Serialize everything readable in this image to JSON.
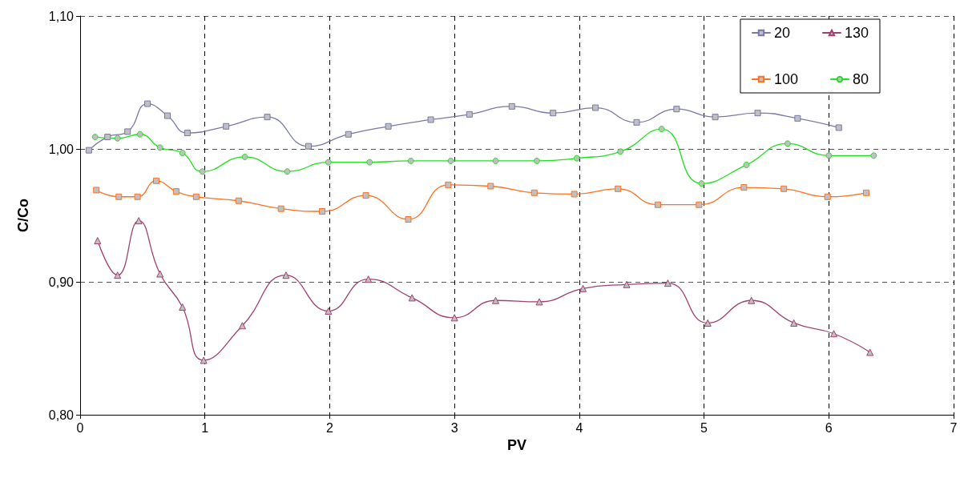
{
  "chart_data": {
    "type": "line",
    "xlabel": "PV",
    "ylabel": "C/Co",
    "xlim": [
      0,
      7
    ],
    "xticks": [
      0,
      1,
      2,
      3,
      4,
      5,
      6,
      7
    ],
    "ylim": [
      0.8,
      1.1
    ],
    "yticks": [
      {
        "value": 0.8,
        "label": "0,80"
      },
      {
        "value": 0.9,
        "label": "0,90"
      },
      {
        "value": 1.0,
        "label": "1,00"
      },
      {
        "value": 1.1,
        "label": "1,10"
      }
    ],
    "grid": true,
    "legend": "top right",
    "line_style": "solid",
    "series": [
      {
        "name": "20",
        "color": "#7878a8",
        "marker": "square",
        "x": [
          0.07,
          0.22,
          0.38,
          0.54,
          0.7,
          0.86,
          1.17,
          1.5,
          1.83,
          2.15,
          2.47,
          2.81,
          3.12,
          3.46,
          3.79,
          4.13,
          4.46,
          4.78,
          5.09,
          5.43,
          5.75,
          6.08
        ],
        "values": [
          0.999,
          1.009,
          1.013,
          1.034,
          1.025,
          1.012,
          1.017,
          1.024,
          1.002,
          1.011,
          1.017,
          1.022,
          1.026,
          1.032,
          1.027,
          1.031,
          1.02,
          1.03,
          1.024,
          1.027,
          1.023,
          1.016
        ]
      },
      {
        "name": "130",
        "color": "#a04070",
        "marker": "triangle",
        "x": [
          0.14,
          0.3,
          0.47,
          0.64,
          0.82,
          0.99,
          1.3,
          1.65,
          1.99,
          2.31,
          2.66,
          3.0,
          3.33,
          3.68,
          4.03,
          4.38,
          4.71,
          5.03,
          5.38,
          5.72,
          6.04,
          6.33
        ],
        "values": [
          0.931,
          0.905,
          0.946,
          0.906,
          0.881,
          0.841,
          0.867,
          0.905,
          0.878,
          0.902,
          0.888,
          0.873,
          0.886,
          0.885,
          0.895,
          0.898,
          0.899,
          0.869,
          0.886,
          0.869,
          0.861,
          0.847
        ]
      },
      {
        "name": "100",
        "color": "#ff7020",
        "marker": "square",
        "x": [
          0.13,
          0.31,
          0.46,
          0.61,
          0.77,
          0.93,
          1.27,
          1.61,
          1.94,
          2.29,
          2.63,
          2.95,
          3.29,
          3.64,
          3.96,
          4.31,
          4.63,
          4.96,
          5.32,
          5.64,
          5.99,
          6.3
        ],
        "values": [
          0.969,
          0.964,
          0.964,
          0.976,
          0.968,
          0.964,
          0.961,
          0.955,
          0.953,
          0.965,
          0.947,
          0.973,
          0.972,
          0.967,
          0.966,
          0.97,
          0.958,
          0.958,
          0.971,
          0.97,
          0.964,
          0.967
        ]
      },
      {
        "name": "80",
        "color": "#20e020",
        "marker": "circle",
        "x": [
          0.12,
          0.3,
          0.48,
          0.64,
          0.82,
          0.98,
          1.32,
          1.66,
          1.99,
          2.32,
          2.65,
          2.97,
          3.33,
          3.66,
          3.98,
          4.33,
          4.66,
          4.98,
          5.34,
          5.67,
          6.0,
          6.36
        ],
        "values": [
          1.009,
          1.008,
          1.011,
          1.001,
          0.997,
          0.983,
          0.994,
          0.983,
          0.99,
          0.99,
          0.991,
          0.991,
          0.991,
          0.991,
          0.993,
          0.998,
          1.015,
          0.974,
          0.988,
          1.004,
          0.995,
          0.995
        ]
      }
    ]
  }
}
